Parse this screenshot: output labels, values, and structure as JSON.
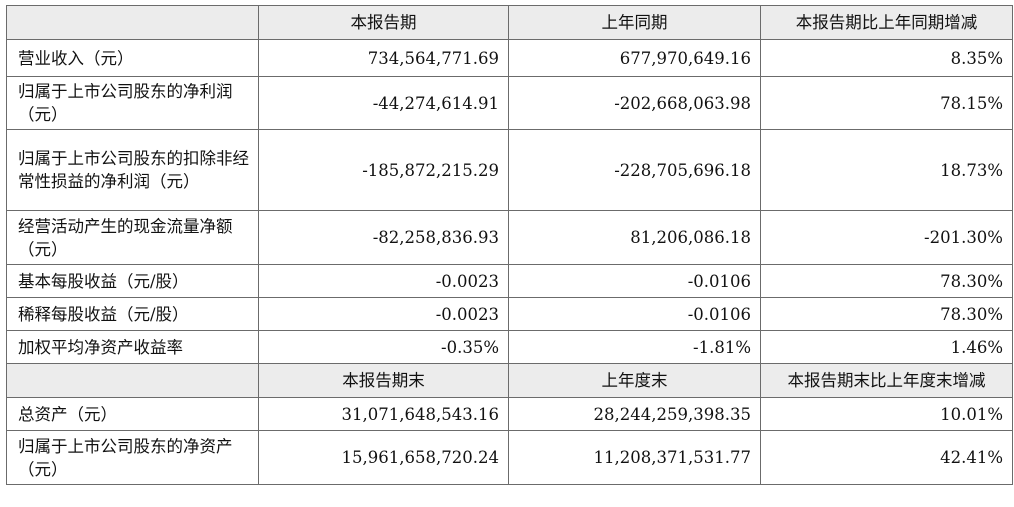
{
  "table": {
    "header1": {
      "col1": "本报告期",
      "col2": "上年同期",
      "col3": "本报告期比上年同期增减"
    },
    "rows1": [
      {
        "label": "营业收入（元）",
        "v1": "734,564,771.69",
        "v2": "677,970,649.16",
        "v3": "8.35%"
      },
      {
        "label": "归属于上市公司股东的净利润（元）",
        "v1": "-44,274,614.91",
        "v2": "-202,668,063.98",
        "v3": "78.15%"
      },
      {
        "label": "归属于上市公司股东的扣除非经常性损益的净利润（元）",
        "v1": "-185,872,215.29",
        "v2": "-228,705,696.18",
        "v3": "18.73%"
      },
      {
        "label": "经营活动产生的现金流量净额（元）",
        "v1": "-82,258,836.93",
        "v2": "81,206,086.18",
        "v3": "-201.30%"
      },
      {
        "label": "基本每股收益（元/股）",
        "v1": "-0.0023",
        "v2": "-0.0106",
        "v3": "78.30%"
      },
      {
        "label": "稀释每股收益（元/股）",
        "v1": "-0.0023",
        "v2": "-0.0106",
        "v3": "78.30%"
      },
      {
        "label": "加权平均净资产收益率",
        "v1": "-0.35%",
        "v2": "-1.81%",
        "v3": "1.46%"
      }
    ],
    "header2": {
      "col1": "本报告期末",
      "col2": "上年度末",
      "col3": "本报告期末比上年度末增减"
    },
    "rows2": [
      {
        "label": "总资产（元）",
        "v1": "31,071,648,543.16",
        "v2": "28,244,259,398.35",
        "v3": "10.01%"
      },
      {
        "label": "归属于上市公司股东的净资产（元）",
        "v1": "15,961,658,720.24",
        "v2": "11,208,371,531.77",
        "v3": "42.41%"
      }
    ]
  }
}
